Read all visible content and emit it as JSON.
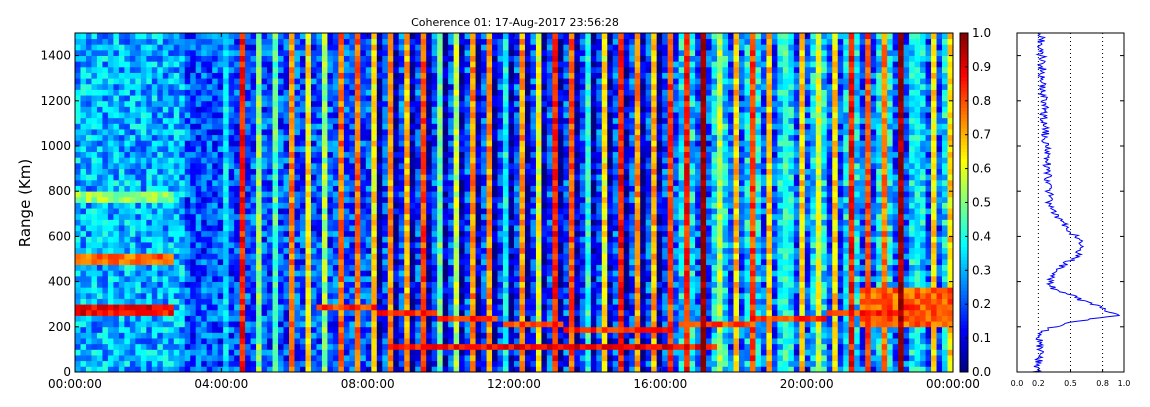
{
  "chart_data": [
    {
      "type": "heatmap",
      "title": "Coherence 01: 17-Aug-2017 23:56:28",
      "xlabel": "",
      "ylabel": "Range (Km)",
      "x_ticks": [
        "00:00:00",
        "04:00:00",
        "08:00:00",
        "12:00:00",
        "16:00:00",
        "20:00:00",
        "00:00:00"
      ],
      "x_range_hours": [
        0,
        24
      ],
      "y_ticks": [
        0,
        200,
        400,
        600,
        800,
        1000,
        1200,
        1400
      ],
      "ylim": [
        0,
        1500
      ],
      "colormap": "jet",
      "clim": [
        0,
        1
      ],
      "colorbar_ticks": [
        "0.0",
        "0.1",
        "0.2",
        "0.3",
        "0.4",
        "0.5",
        "0.6",
        "0.7",
        "0.8",
        "0.9",
        "1.0"
      ],
      "background_level": 0.2,
      "features": [
        {
          "kind": "echo_band",
          "t_hours": [
            0,
            2.7
          ],
          "range_km": [
            250,
            300
          ],
          "level": 0.95
        },
        {
          "kind": "echo_band",
          "t_hours": [
            0,
            2.7
          ],
          "range_km": [
            480,
            520
          ],
          "level": 0.85
        },
        {
          "kind": "echo_band",
          "t_hours": [
            0,
            2.7
          ],
          "range_km": [
            750,
            800
          ],
          "level": 0.6
        },
        {
          "kind": "echo_trace",
          "t_hours": [
            6.5,
            23
          ],
          "range_km": [
            300,
            180,
            280
          ],
          "level": 0.9
        },
        {
          "kind": "echo_trace",
          "t_hours": [
            8.5,
            17.5
          ],
          "range_km": [
            110,
            110
          ],
          "level": 0.95
        },
        {
          "kind": "echo_band",
          "t_hours": [
            21.5,
            24
          ],
          "range_km": [
            200,
            380
          ],
          "level": 0.85
        }
      ]
    },
    {
      "type": "line",
      "title": "",
      "xlabel": "",
      "ylabel": "",
      "x_ticks": [
        "0.0",
        "0.2",
        "0.5",
        "0.8",
        "1.0"
      ],
      "xlim": [
        0,
        1
      ],
      "ylim": [
        0,
        1500
      ],
      "grid_x": [
        0.2,
        0.5,
        0.8
      ],
      "color": "#0000ff",
      "profile": [
        {
          "y": 0,
          "x": 0.18
        },
        {
          "y": 50,
          "x": 0.2
        },
        {
          "y": 100,
          "x": 0.21
        },
        {
          "y": 150,
          "x": 0.2
        },
        {
          "y": 180,
          "x": 0.22
        },
        {
          "y": 220,
          "x": 0.5
        },
        {
          "y": 250,
          "x": 0.92
        },
        {
          "y": 270,
          "x": 0.85
        },
        {
          "y": 300,
          "x": 0.7
        },
        {
          "y": 330,
          "x": 0.55
        },
        {
          "y": 370,
          "x": 0.35
        },
        {
          "y": 400,
          "x": 0.3
        },
        {
          "y": 450,
          "x": 0.35
        },
        {
          "y": 500,
          "x": 0.52
        },
        {
          "y": 550,
          "x": 0.63
        },
        {
          "y": 600,
          "x": 0.55
        },
        {
          "y": 650,
          "x": 0.45
        },
        {
          "y": 700,
          "x": 0.36
        },
        {
          "y": 750,
          "x": 0.31
        },
        {
          "y": 800,
          "x": 0.3
        },
        {
          "y": 900,
          "x": 0.28
        },
        {
          "y": 1000,
          "x": 0.27
        },
        {
          "y": 1100,
          "x": 0.26
        },
        {
          "y": 1200,
          "x": 0.25
        },
        {
          "y": 1300,
          "x": 0.24
        },
        {
          "y": 1400,
          "x": 0.23
        },
        {
          "y": 1500,
          "x": 0.22
        }
      ]
    }
  ]
}
